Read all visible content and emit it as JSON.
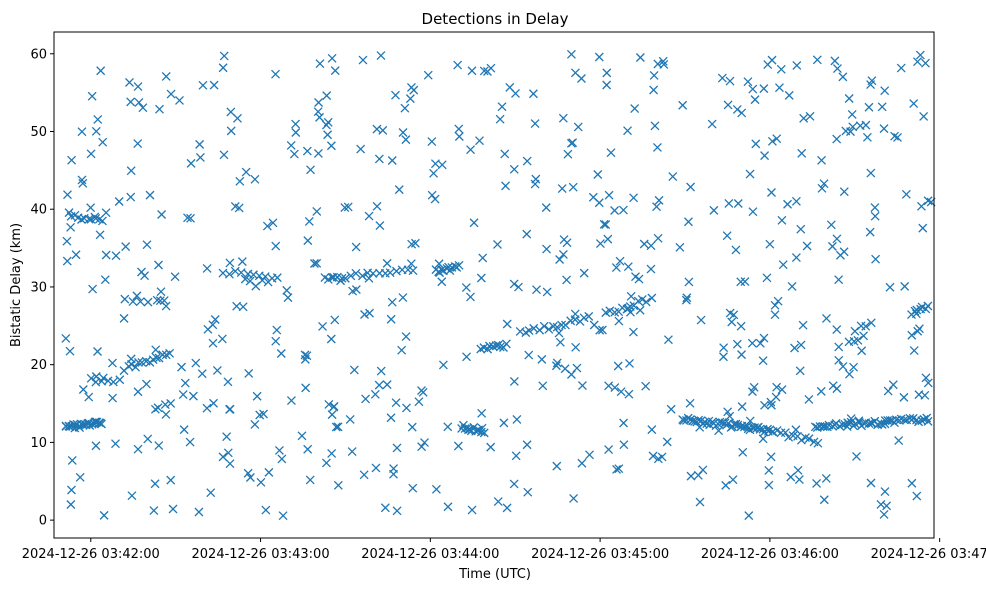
{
  "chart_data": {
    "type": "scatter",
    "title": "Detections in Delay",
    "xlabel": "Time (UTC)",
    "ylabel": "Bistatic Delay (km)",
    "marker": "x",
    "color": "#1f77b4",
    "x_unit": "seconds after 2024-12-26 03:41:00 UTC",
    "xlim": [
      47,
      358
    ],
    "ylim": [
      -2.3,
      62.8
    ],
    "x_ticks": [
      {
        "value": 60,
        "label": "2024-12-26 03:42:00"
      },
      {
        "value": 120,
        "label": "2024-12-26 03:43:00"
      },
      {
        "value": 180,
        "label": "2024-12-26 03:44:00"
      },
      {
        "value": 240,
        "label": "2024-12-26 03:45:00"
      },
      {
        "value": 300,
        "label": "2024-12-26 03:46:00"
      },
      {
        "value": 360,
        "label": "2024-12-26 03:47:00"
      }
    ],
    "y_ticks": [
      {
        "value": 0,
        "label": "0"
      },
      {
        "value": 10,
        "label": "10"
      },
      {
        "value": 20,
        "label": "20"
      },
      {
        "value": 30,
        "label": "30"
      },
      {
        "value": 40,
        "label": "40"
      },
      {
        "value": 50,
        "label": "50"
      },
      {
        "value": 60,
        "label": "60"
      }
    ],
    "series": [
      {
        "name": "detections",
        "seed": 20241226,
        "tracks": [
          {
            "from": [
              51,
              12.0
            ],
            "to": [
              64,
              12.5
            ],
            "count": 26
          },
          {
            "from": [
              53,
              39.0
            ],
            "to": [
              64,
              38.5
            ],
            "count": 10
          },
          {
            "from": [
              72,
              19.5
            ],
            "to": [
              88,
              21.5
            ],
            "count": 14
          },
          {
            "from": [
              107,
              32.0
            ],
            "to": [
              126,
              31.0
            ],
            "count": 10
          },
          {
            "from": [
              143,
              31.0
            ],
            "to": [
              150,
              31.0
            ],
            "count": 8
          },
          {
            "from": [
              152,
              31.5
            ],
            "to": [
              174,
              32.0
            ],
            "count": 12
          },
          {
            "from": [
              182,
              32.0
            ],
            "to": [
              190,
              32.5
            ],
            "count": 12
          },
          {
            "from": [
              191,
              12.0
            ],
            "to": [
              199,
              11.5
            ],
            "count": 14
          },
          {
            "from": [
              198,
              22.0
            ],
            "to": [
              207,
              22.5
            ],
            "count": 10
          },
          {
            "from": [
              212,
              24.0
            ],
            "to": [
              236,
              26.0
            ],
            "count": 16
          },
          {
            "from": [
              242,
              26.5
            ],
            "to": [
              258,
              28.5
            ],
            "count": 12
          },
          {
            "from": [
              269,
              13.0
            ],
            "to": [
              301,
              11.5
            ],
            "count": 46
          },
          {
            "from": [
              301,
              11.5
            ],
            "to": [
              317,
              10.0
            ],
            "count": 12
          },
          {
            "from": [
              316,
              12.0
            ],
            "to": [
              356,
              13.0
            ],
            "count": 48
          },
          {
            "from": [
              350,
              26.5
            ],
            "to": [
              356,
              27.5
            ],
            "count": 7
          },
          {
            "from": [
              328,
              23.0
            ],
            "to": [
              333,
              23.5
            ],
            "count": 4
          },
          {
            "from": [
              330,
              24.5
            ],
            "to": [
              336,
              25.5
            ],
            "count": 4
          },
          {
            "from": [
              327,
              50.0
            ],
            "to": [
              334,
              51.0
            ],
            "count": 4
          },
          {
            "from": [
              259,
              8.0
            ],
            "to": [
              262,
              8.0
            ],
            "count": 3
          },
          {
            "from": [
              243,
              17.0
            ],
            "to": [
              250,
              16.5
            ],
            "count": 4
          },
          {
            "from": [
              72,
              28.5
            ],
            "to": [
              86,
              28.0
            ],
            "count": 6
          },
          {
            "from": [
              60,
              18.0
            ],
            "to": [
              70,
              18.0
            ],
            "count": 6
          }
        ],
        "uniform_points": {
          "count": 600,
          "x_range": [
            50,
            357
          ],
          "y_range": [
            0.5,
            60
          ]
        }
      }
    ]
  }
}
